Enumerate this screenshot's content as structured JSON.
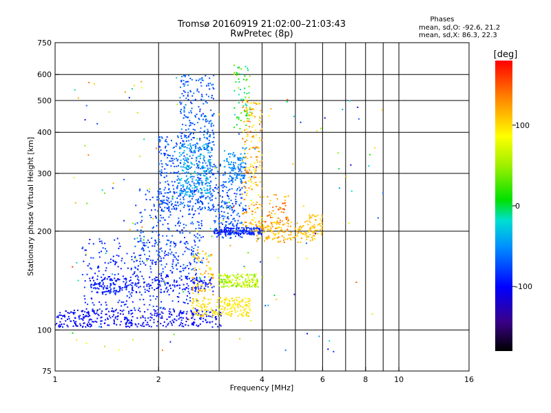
{
  "title": "Tromsø 20160919 21:02:00–21:03:43",
  "subtitle": "RwPretec (8p)",
  "phases": {
    "heading": "Phases",
    "line_o": "mean, sd,O: -92.6, 21.2",
    "line_x": "mean, sd,X:  86.3, 22.3"
  },
  "colorbar": {
    "label": "[deg]",
    "range": [
      -180,
      180
    ],
    "ticks": [
      {
        "value": 100,
        "label": "100"
      },
      {
        "value": 0,
        "label": "0"
      },
      {
        "value": -100,
        "label": "-100"
      }
    ]
  },
  "chart_data": {
    "type": "scatter",
    "xlabel": "Frequency [MHz]",
    "ylabel": "Stationary phase Virtual Height [km]",
    "x_scale": "log",
    "y_scale": "log",
    "xlim": [
      1,
      16
    ],
    "ylim": [
      75,
      750
    ],
    "x_ticks": [
      {
        "value": 1,
        "label": "1"
      },
      {
        "value": 2,
        "label": "2"
      },
      {
        "value": 4,
        "label": "4"
      },
      {
        "value": 6,
        "label": "6"
      },
      {
        "value": 8,
        "label": "8"
      },
      {
        "value": 10,
        "label": "10"
      },
      {
        "value": 16,
        "label": "16"
      }
    ],
    "x_gridlines": [
      2,
      3,
      4,
      5,
      6,
      7,
      8,
      9,
      10
    ],
    "y_ticks": [
      {
        "value": 75,
        "label": "75"
      },
      {
        "value": 100,
        "label": "100"
      },
      {
        "value": 200,
        "label": "200"
      },
      {
        "value": 300,
        "label": "300"
      },
      {
        "value": 400,
        "label": "400"
      },
      {
        "value": 500,
        "label": "500"
      },
      {
        "value": 600,
        "label": "600"
      },
      {
        "value": 750,
        "label": "750"
      }
    ],
    "y_gridlines": [
      100,
      200,
      300,
      400,
      500,
      600
    ],
    "grid": true,
    "clusters": [
      {
        "f": [
          1.0,
          3.05
        ],
        "h": [
          102,
          115
        ],
        "phase": [
          -110,
          -90
        ],
        "n": 380
      },
      {
        "f": [
          1.25,
          2.9
        ],
        "h": [
          130,
          146
        ],
        "phase": [
          -105,
          -85
        ],
        "n": 240
      },
      {
        "f": [
          1.2,
          2.6
        ],
        "h": [
          115,
          190
        ],
        "phase": [
          -100,
          -75
        ],
        "n": 320
      },
      {
        "f": [
          1.7,
          2.7
        ],
        "h": [
          150,
          270
        ],
        "phase": [
          -90,
          -60
        ],
        "n": 260
      },
      {
        "f": [
          2.0,
          2.9
        ],
        "h": [
          230,
          390
        ],
        "phase": [
          -90,
          -55
        ],
        "n": 380
      },
      {
        "f": [
          2.3,
          2.85
        ],
        "h": [
          255,
          370
        ],
        "phase": [
          -60,
          -20
        ],
        "n": 200
      },
      {
        "f": [
          2.3,
          2.9
        ],
        "h": [
          380,
          600
        ],
        "phase": [
          -90,
          -50
        ],
        "n": 170
      },
      {
        "f": [
          2.9,
          3.6
        ],
        "h": [
          190,
          320
        ],
        "phase": [
          -90,
          -55
        ],
        "n": 220
      },
      {
        "f": [
          3.1,
          3.6
        ],
        "h": [
          280,
          360
        ],
        "phase": [
          -65,
          -40
        ],
        "n": 100
      },
      {
        "f": [
          3.3,
          3.7
        ],
        "h": [
          400,
          640
        ],
        "phase": [
          -30,
          50
        ],
        "n": 70
      },
      {
        "f": [
          3.5,
          4.0
        ],
        "h": [
          200,
          500
        ],
        "phase": [
          80,
          150
        ],
        "n": 200
      },
      {
        "f": [
          3.0,
          3.9
        ],
        "h": [
          135,
          148
        ],
        "phase": [
          30,
          90
        ],
        "n": 160
      },
      {
        "f": [
          2.5,
          3.7
        ],
        "h": [
          110,
          126
        ],
        "phase": [
          85,
          110
        ],
        "n": 200
      },
      {
        "f": [
          2.5,
          2.9
        ],
        "h": [
          128,
          175
        ],
        "phase": [
          80,
          140
        ],
        "n": 70
      },
      {
        "f": [
          3.8,
          5.7
        ],
        "h": [
          185,
          215
        ],
        "phase": [
          95,
          130
        ],
        "n": 150
      },
      {
        "f": [
          4.0,
          4.8
        ],
        "h": [
          200,
          260
        ],
        "phase": [
          100,
          160
        ],
        "n": 70
      },
      {
        "f": [
          2.9,
          4.0
        ],
        "h": [
          195,
          205
        ],
        "phase": [
          -100,
          -80
        ],
        "n": 160
      },
      {
        "f": [
          5.4,
          6.0
        ],
        "h": [
          195,
          225
        ],
        "phase": [
          100,
          120
        ],
        "n": 50
      },
      {
        "f": [
          1.1,
          9.5
        ],
        "h": [
          85,
          600
        ],
        "phase": [
          -120,
          160
        ],
        "n": 150
      }
    ]
  }
}
